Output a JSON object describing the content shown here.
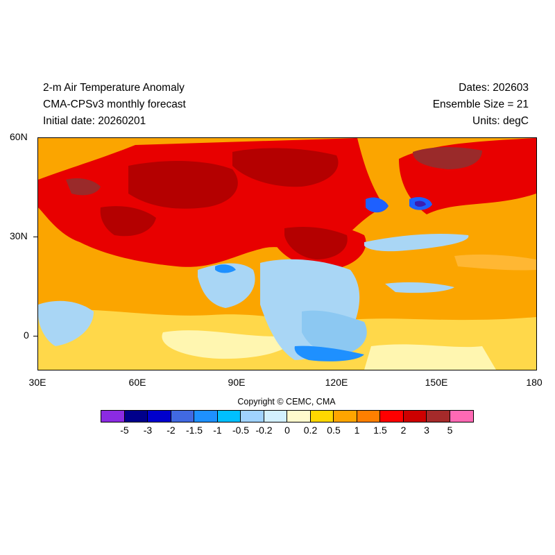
{
  "header": {
    "title_line1": "2-m Air Temperature Anomaly",
    "title_line2": "CMA-CPSv3 monthly forecast",
    "title_line3": "Initial date: 20260201",
    "dates": "Dates: 202603",
    "ensemble": "Ensemble Size = 21",
    "units": "Units: degC"
  },
  "axes": {
    "y_ticks": [
      "60N",
      "30N",
      "0"
    ],
    "x_ticks": [
      "30E",
      "60E",
      "90E",
      "120E",
      "150E",
      "180"
    ]
  },
  "copyright": "Copyright © CEMC, CMA",
  "colorbar": {
    "colors": [
      "#8b2be2",
      "#00008b",
      "#0000cd",
      "#4169e1",
      "#1e90ff",
      "#00bfff",
      "#a0d2ff",
      "#d2f0ff",
      "#fffacd",
      "#ffd700",
      "#ffa500",
      "#ff7f00",
      "#ff0000",
      "#cd0000",
      "#a52a2a",
      "#ff69b4"
    ],
    "labels": [
      "-5",
      "-3",
      "-2",
      "-1.5",
      "-1",
      "-0.5",
      "-0.2",
      "0",
      "0.2",
      "0.5",
      "1",
      "1.5",
      "2",
      "3",
      "5"
    ]
  },
  "map": {
    "region": "30E-180, 10S-60N",
    "warm_color": "#fba500",
    "hot_color": "#e00000",
    "very_hot_color": "#b00000",
    "cool_color": "#a9d6f5",
    "cold_color": "#1e90ff"
  }
}
